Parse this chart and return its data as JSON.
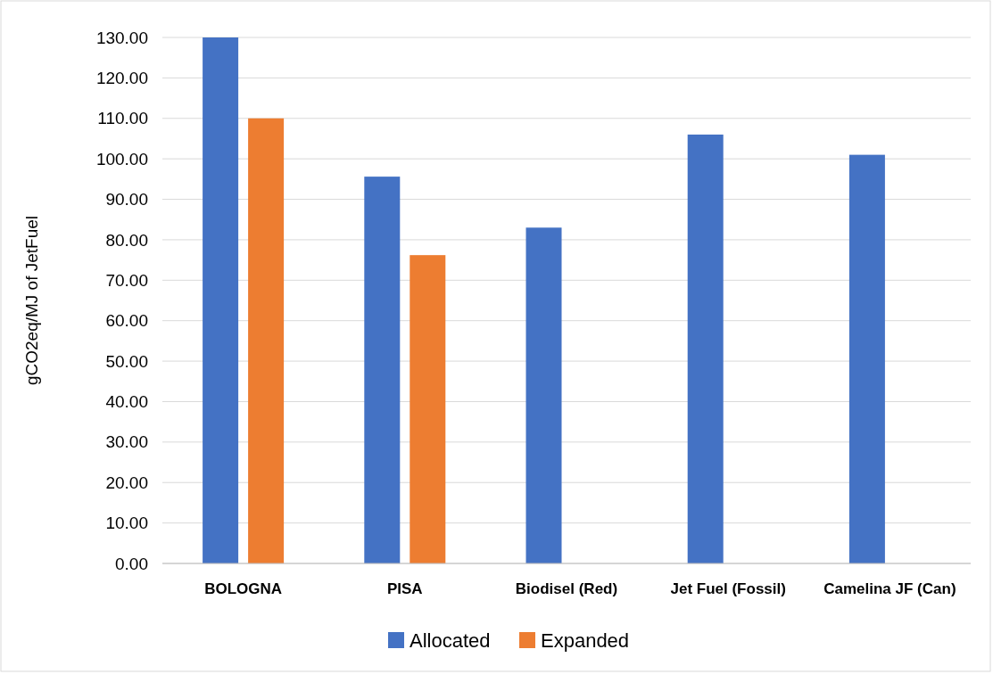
{
  "chart_data": {
    "type": "bar",
    "ylabel": "gCO2eq/MJ of JetFuel",
    "categories": [
      "BOLOGNA",
      "PISA",
      "Biodisel (Red)",
      "Jet Fuel (Fossil)",
      "Camelina JF (Can)"
    ],
    "series": [
      {
        "name": "Allocated",
        "color": "#4472c4",
        "values": [
          130,
          95.6,
          83,
          106,
          101
        ]
      },
      {
        "name": "Expanded",
        "color": "#ed7d31",
        "values": [
          110,
          76.2,
          null,
          null,
          null
        ]
      }
    ],
    "ylim": [
      0,
      130
    ],
    "yticks": [
      {
        "value": 0,
        "label": "0.00"
      },
      {
        "value": 10,
        "label": "10.00"
      },
      {
        "value": 20,
        "label": "20.00"
      },
      {
        "value": 30,
        "label": "30.00"
      },
      {
        "value": 40,
        "label": "40.00"
      },
      {
        "value": 50,
        "label": "50.00"
      },
      {
        "value": 60,
        "label": "60.00"
      },
      {
        "value": 70,
        "label": "70.00"
      },
      {
        "value": 80,
        "label": "80.00"
      },
      {
        "value": 90,
        "label": "90.00"
      },
      {
        "value": 100,
        "label": "100.00"
      },
      {
        "value": 110,
        "label": "110.00"
      },
      {
        "value": 120,
        "label": "120.00"
      },
      {
        "value": 130,
        "label": "130.00"
      }
    ],
    "grid": "y",
    "legend": "bottom"
  }
}
